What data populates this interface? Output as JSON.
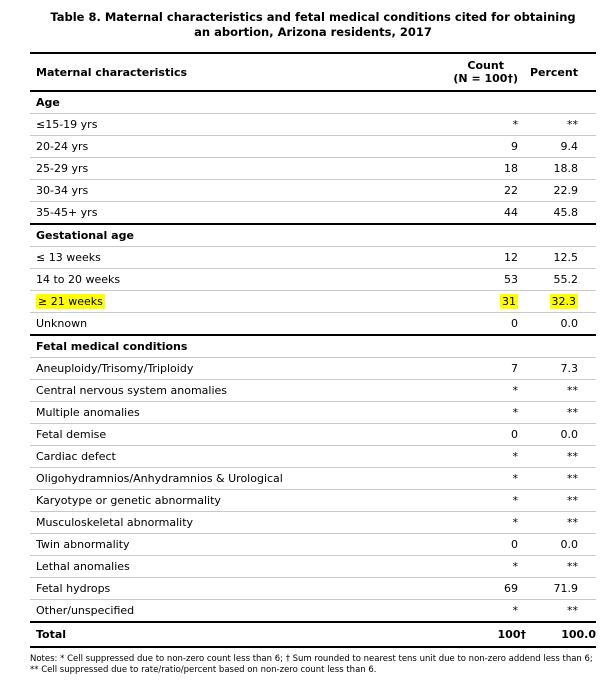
{
  "title": {
    "line1": "Table 8. Maternal characteristics and fetal medical conditions cited for obtaining",
    "line2": "an abortion, Arizona residents, 2017"
  },
  "table": {
    "col1_header": "Maternal characteristics",
    "col2_header_line1": "Count",
    "col2_header_line2": "(N = 100†)",
    "col3_header": "Percent",
    "highlight_color": "#ffff00",
    "sections": [
      {
        "header": "Age",
        "rows": [
          {
            "label": "≤15-19 yrs",
            "count": "*",
            "percent": "**"
          },
          {
            "label": "20-24 yrs",
            "count": "9",
            "percent": "9.4"
          },
          {
            "label": "25-29 yrs",
            "count": "18",
            "percent": "18.8"
          },
          {
            "label": "30-34 yrs",
            "count": "22",
            "percent": "22.9"
          },
          {
            "label": "35-45+ yrs",
            "count": "44",
            "percent": "45.8"
          }
        ]
      },
      {
        "header": "Gestational age",
        "rows": [
          {
            "label": "≤ 13 weeks",
            "count": "12",
            "percent": "12.5"
          },
          {
            "label": "14 to 20 weeks",
            "count": "53",
            "percent": "55.2"
          },
          {
            "label": "≥ 21 weeks",
            "count": "31",
            "percent": "32.3",
            "highlight": true
          },
          {
            "label": "Unknown",
            "count": "0",
            "percent": "0.0"
          }
        ]
      },
      {
        "header": "Fetal medical conditions",
        "rows": [
          {
            "label": "Aneuploidy/Trisomy/Triploidy",
            "count": "7",
            "percent": "7.3"
          },
          {
            "label": "Central nervous system anomalies",
            "count": "*",
            "percent": "**"
          },
          {
            "label": "Multiple anomalies",
            "count": "*",
            "percent": "**"
          },
          {
            "label": "Fetal demise",
            "count": "0",
            "percent": "0.0"
          },
          {
            "label": "Cardiac defect",
            "count": "*",
            "percent": "**"
          },
          {
            "label": "Oligohydramnios/Anhydramnios & Urological",
            "count": "*",
            "percent": "**"
          },
          {
            "label": "Karyotype or genetic abnormality",
            "count": "*",
            "percent": "**"
          },
          {
            "label": "Musculoskeletal abnormality",
            "count": "*",
            "percent": "**"
          },
          {
            "label": "Twin abnormality",
            "count": "0",
            "percent": "0.0"
          },
          {
            "label": "Lethal anomalies",
            "count": "*",
            "percent": "**"
          },
          {
            "label": "Fetal hydrops",
            "count": "69",
            "percent": "71.9"
          },
          {
            "label": "Other/unspecified",
            "count": "*",
            "percent": "**"
          }
        ]
      }
    ],
    "total": {
      "label": "Total",
      "count": "100†",
      "percent": "100.0"
    }
  },
  "notes": "Notes: * Cell suppressed due to non-zero count less than 6; † Sum rounded to nearest tens unit due to non-zero addend less than 6; ** Cell suppressed due to rate/ratio/percent based on non-zero count less than 6."
}
